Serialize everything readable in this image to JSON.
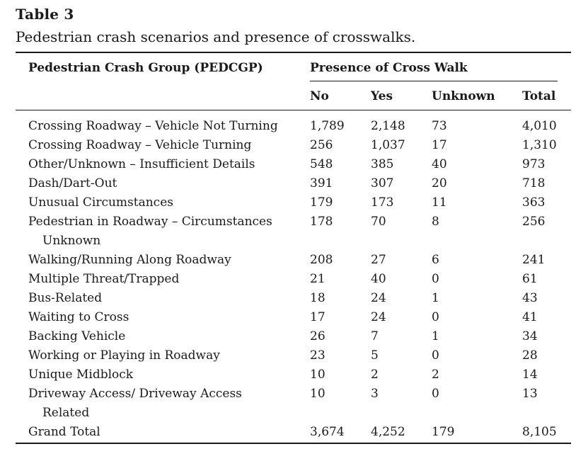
{
  "table": {
    "label": "Table 3",
    "caption": "Pedestrian crash scenarios and presence of crosswalks.",
    "headers": {
      "group": "Pedestrian Crash Group (PEDCGP)",
      "presence": "Presence of Cross Walk",
      "no": "No",
      "yes": "Yes",
      "unknown": "Unknown",
      "total": "Total"
    },
    "rows": [
      {
        "label": "Crossing Roadway – Vehicle Not Turning",
        "cont": "",
        "no": "1,789",
        "yes": "2,148",
        "unknown": "73",
        "total": "4,010"
      },
      {
        "label": "Crossing Roadway – Vehicle Turning",
        "cont": "",
        "no": "256",
        "yes": "1,037",
        "unknown": "17",
        "total": "1,310"
      },
      {
        "label": "Other/Unknown – Insufficient Details",
        "cont": "",
        "no": "548",
        "yes": "385",
        "unknown": "40",
        "total": "973"
      },
      {
        "label": "Dash/Dart-Out",
        "cont": "",
        "no": "391",
        "yes": "307",
        "unknown": "20",
        "total": "718"
      },
      {
        "label": "Unusual Circumstances",
        "cont": "",
        "no": "179",
        "yes": "173",
        "unknown": "11",
        "total": "363"
      },
      {
        "label": "Pedestrian in Roadway – Circumstances",
        "cont": "Unknown",
        "no": "178",
        "yes": "70",
        "unknown": "8",
        "total": "256"
      },
      {
        "label": "Walking/Running Along Roadway",
        "cont": "",
        "no": "208",
        "yes": "27",
        "unknown": "6",
        "total": "241"
      },
      {
        "label": "Multiple Threat/Trapped",
        "cont": "",
        "no": "21",
        "yes": "40",
        "unknown": "0",
        "total": "61"
      },
      {
        "label": "Bus-Related",
        "cont": "",
        "no": "18",
        "yes": "24",
        "unknown": "1",
        "total": "43"
      },
      {
        "label": "Waiting to Cross",
        "cont": "",
        "no": "17",
        "yes": "24",
        "unknown": "0",
        "total": "41"
      },
      {
        "label": "Backing Vehicle",
        "cont": "",
        "no": "26",
        "yes": "7",
        "unknown": "1",
        "total": "34"
      },
      {
        "label": "Working or Playing in Roadway",
        "cont": "",
        "no": "23",
        "yes": "5",
        "unknown": "0",
        "total": "28"
      },
      {
        "label": "Unique Midblock",
        "cont": "",
        "no": "10",
        "yes": "2",
        "unknown": "2",
        "total": "14"
      },
      {
        "label": "Driveway Access/ Driveway Access",
        "cont": "Related",
        "no": "10",
        "yes": "3",
        "unknown": "0",
        "total": "13"
      },
      {
        "label": "Grand Total",
        "cont": "",
        "no": "3,674",
        "yes": "4,252",
        "unknown": "179",
        "total": "8,105"
      }
    ]
  }
}
